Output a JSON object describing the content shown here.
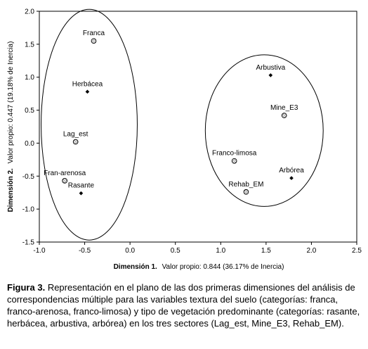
{
  "chart_data": {
    "type": "scatter",
    "title": "",
    "xlabel": {
      "bold": "Dimensión 1.",
      "rest": "Valor propio: 0.844 (36.17% de Inercia)"
    },
    "ylabel": {
      "bold": "Dimensión 2.",
      "rest": "Valor propio: 0.447 (19.18% de Inercia)"
    },
    "xlim": [
      -1.0,
      2.5
    ],
    "ylim": [
      -1.5,
      2.0
    ],
    "xticks": [
      "-1.0",
      "-0.5",
      "0.0",
      "0.5",
      "1.0",
      "1.5",
      "2.0",
      "2.5"
    ],
    "yticks": [
      "-1.5",
      "-1.0",
      "-0.5",
      "0.0",
      "0.5",
      "1.0",
      "1.5",
      "2.0"
    ],
    "grid": false,
    "points": [
      {
        "label": "Franca",
        "x": -0.4,
        "y": 1.55,
        "marker": "circle-hatched"
      },
      {
        "label": "Herbácea",
        "x": -0.47,
        "y": 0.78,
        "marker": "diamond"
      },
      {
        "label": "Lag_est",
        "x": -0.6,
        "y": 0.02,
        "marker": "circle-hatched"
      },
      {
        "label": "Fran-arenosa",
        "x": -0.72,
        "y": -0.57,
        "marker": "circle-hatched"
      },
      {
        "label": "Rasante",
        "x": -0.54,
        "y": -0.76,
        "marker": "diamond"
      },
      {
        "label": "Arbustiva",
        "x": 1.55,
        "y": 1.03,
        "marker": "diamond"
      },
      {
        "label": "Mine_E3",
        "x": 1.7,
        "y": 0.42,
        "marker": "circle-hatched"
      },
      {
        "label": "Franco-limosa",
        "x": 1.15,
        "y": -0.27,
        "marker": "circle-hatched"
      },
      {
        "label": "Arbórea",
        "x": 1.78,
        "y": -0.53,
        "marker": "diamond"
      },
      {
        "label": "Rehab_EM",
        "x": 1.28,
        "y": -0.74,
        "marker": "circle-hatched"
      }
    ],
    "ellipses": [
      {
        "cx": -0.45,
        "cy": 0.28,
        "rx": 0.53,
        "ry": 1.75
      },
      {
        "cx": 1.48,
        "cy": 0.19,
        "rx": 0.65,
        "ry": 1.15
      }
    ]
  },
  "caption": {
    "figure": "Figura 3.",
    "text": "Representación en el plano de las dos primeras dimensiones del análisis de correspondencias múltiple para las variables textura del suelo (categorías: franca, franco-arenosa, franco-limosa) y tipo de vegetación predominante (categorías: rasante, herbácea, arbustiva, arbórea) en los tres sectores (Lag_est, Mine_E3, Rehab_EM)."
  }
}
